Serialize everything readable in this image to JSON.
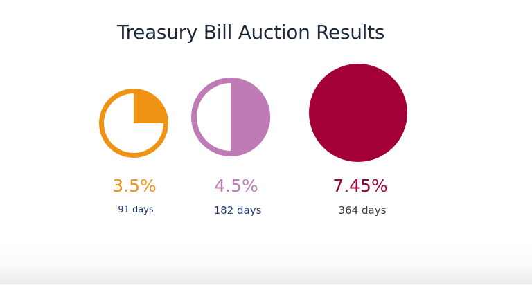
{
  "title": "Treasury Bill Auction Results",
  "items": [
    {
      "rate": "3.5%",
      "tenor": "91 days",
      "color": "#f09214",
      "fill_fraction": 0.25,
      "tenor_color": "#1f3a6e"
    },
    {
      "rate": "4.5%",
      "tenor": "182 days",
      "color": "#bf7bb6",
      "fill_fraction": 0.5,
      "tenor_color": "#1f3a6e"
    },
    {
      "rate": "7.45%",
      "tenor": "364 days",
      "color": "#a3003a",
      "fill_fraction": 1.0,
      "tenor_color": "#333a44"
    }
  ]
}
